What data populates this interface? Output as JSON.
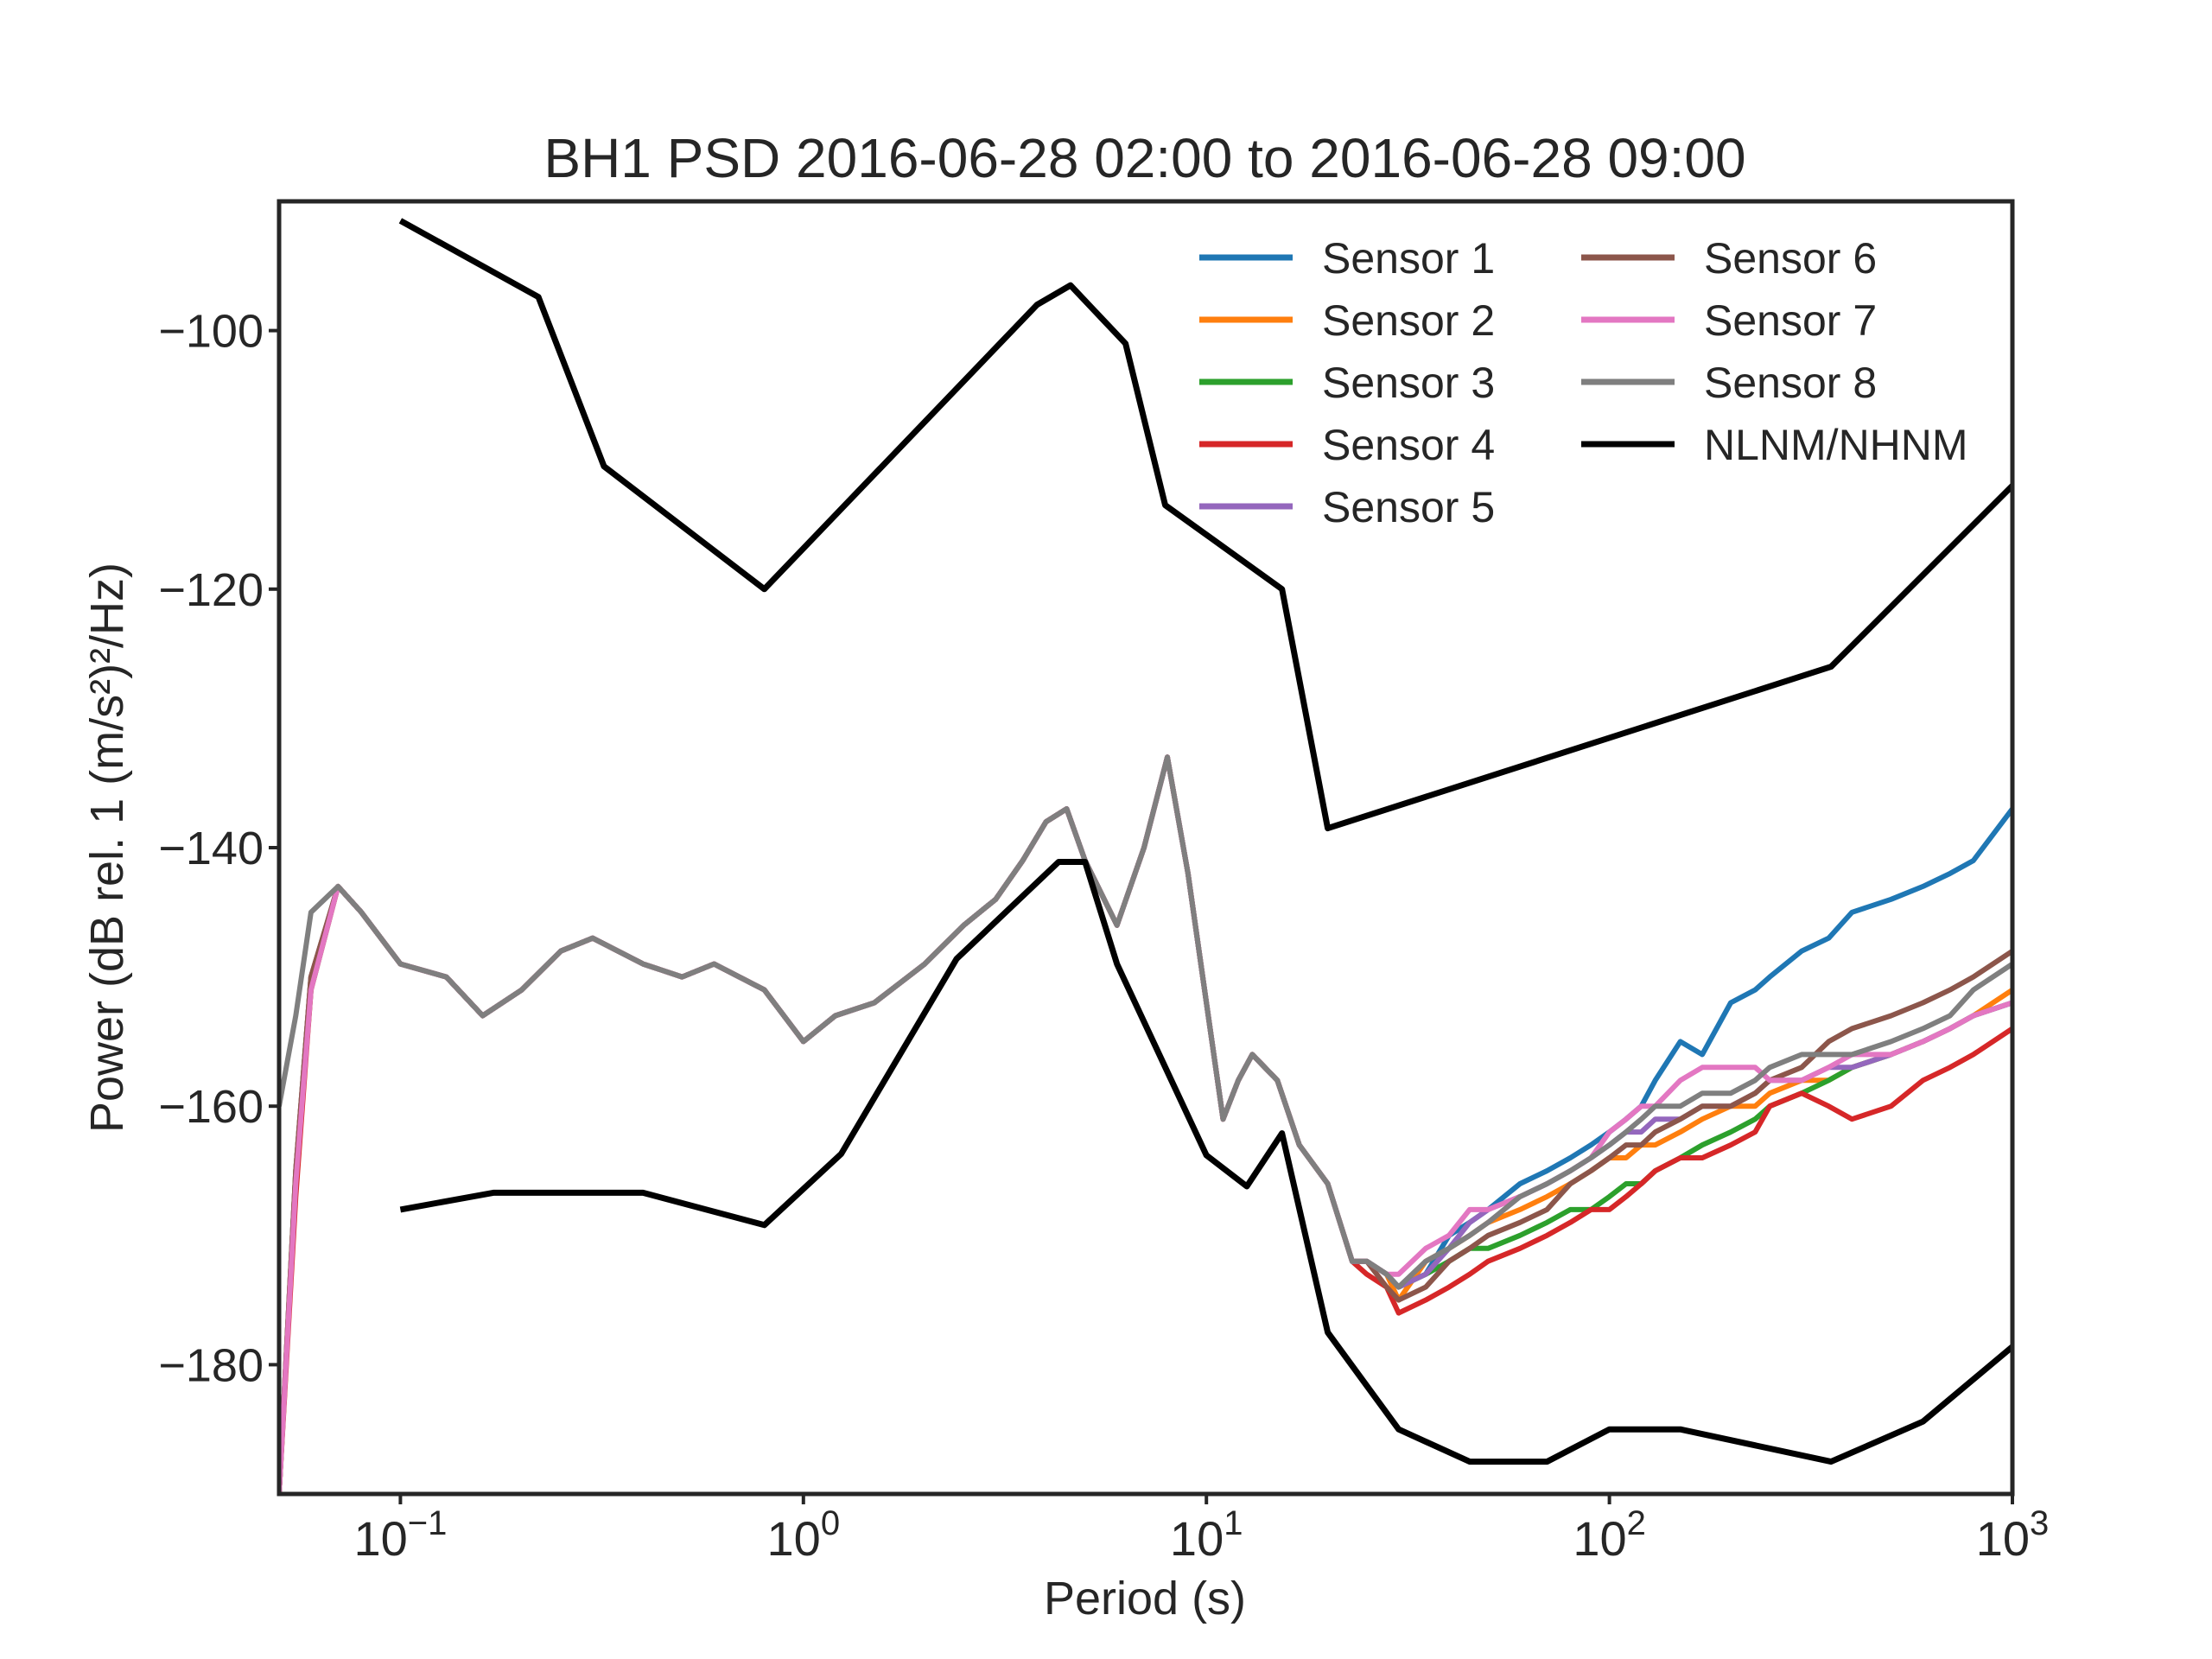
{
  "chart_data": {
    "type": "line",
    "title": "BH1 PSD 2016-06-28 02:00 to 2016-06-28 09:00",
    "xlabel": "Period (s)",
    "ylabel": "Power (dB rel. 1 (m/s²)²/Hz)",
    "xscale": "log",
    "xlim": [
      0.05,
      1000
    ],
    "ylim": [
      -190,
      -90
    ],
    "grid": false,
    "legend_position": "top-right",
    "x_ticks": [
      {
        "value": 0.1,
        "base": "10",
        "exp": "−1"
      },
      {
        "value": 1,
        "base": "10",
        "exp": "0"
      },
      {
        "value": 10,
        "base": "10",
        "exp": "1"
      },
      {
        "value": 100,
        "base": "10",
        "exp": "2"
      },
      {
        "value": 1000,
        "base": "10",
        "exp": "3"
      }
    ],
    "y_ticks": [
      {
        "value": -100,
        "label": "−100"
      },
      {
        "value": -120,
        "label": "−120"
      },
      {
        "value": -140,
        "label": "−140"
      },
      {
        "value": -160,
        "label": "−160"
      },
      {
        "value": -180,
        "label": "−180"
      }
    ],
    "series": [
      {
        "name": "Sensor 1",
        "color": "#1f77b4",
        "x": [
          0.05,
          0.055,
          0.06,
          0.07,
          0.08,
          0.1,
          0.13,
          0.16,
          0.2,
          0.25,
          0.3,
          0.4,
          0.5,
          0.6,
          0.8,
          1.0,
          1.2,
          1.5,
          2.0,
          2.5,
          3.0,
          3.5,
          4.0,
          4.5,
          5.0,
          6.0,
          7.0,
          8.0,
          9.0,
          10,
          11,
          12,
          13,
          15,
          17,
          20,
          23,
          25,
          28,
          30,
          35,
          40,
          45,
          50,
          60,
          70,
          80,
          90,
          100,
          110,
          120,
          130,
          150,
          170,
          200,
          230,
          250,
          300,
          350,
          400,
          500,
          600,
          700,
          800,
          1000
        ],
        "y": [
          -190,
          -165,
          -150,
          -143,
          -145,
          -149,
          -150,
          -153,
          -151,
          -148,
          -147,
          -149,
          -150,
          -149,
          -151,
          -155,
          -153,
          -152,
          -149,
          -146,
          -144,
          -141,
          -138,
          -137,
          -141,
          -146,
          -140,
          -133,
          -142,
          -152,
          -161,
          -158,
          -156,
          -158,
          -163,
          -166,
          -172,
          -172,
          -173,
          -174,
          -173,
          -170,
          -169,
          -168,
          -166,
          -165,
          -164,
          -163,
          -162,
          -161,
          -160,
          -158,
          -155,
          -156,
          -152,
          -151,
          -150,
          -148,
          -147,
          -145,
          -144,
          -143,
          -142,
          -141,
          -137
        ]
      },
      {
        "name": "Sensor 2",
        "color": "#ff7f0e",
        "x": [
          0.05,
          0.055,
          0.06,
          0.07,
          0.08,
          0.1,
          0.13,
          0.16,
          0.2,
          0.25,
          0.3,
          0.4,
          0.5,
          0.6,
          0.8,
          1.0,
          1.2,
          1.5,
          2.0,
          2.5,
          3.0,
          3.5,
          4.0,
          4.5,
          5.0,
          6.0,
          7.0,
          8.0,
          9.0,
          10,
          11,
          12,
          13,
          15,
          17,
          20,
          23,
          25,
          28,
          30,
          35,
          40,
          45,
          50,
          60,
          70,
          80,
          90,
          100,
          110,
          120,
          130,
          150,
          170,
          200,
          230,
          250,
          300,
          350,
          400,
          500,
          600,
          700,
          800,
          1000
        ],
        "y": [
          -190,
          -165,
          -150,
          -143,
          -145,
          -149,
          -150,
          -153,
          -151,
          -148,
          -147,
          -149,
          -150,
          -149,
          -151,
          -155,
          -153,
          -152,
          -149,
          -146,
          -144,
          -141,
          -138,
          -137,
          -141,
          -146,
          -140,
          -133,
          -142,
          -152,
          -161,
          -158,
          -156,
          -158,
          -163,
          -166,
          -172,
          -172,
          -173,
          -175,
          -172,
          -171,
          -170,
          -169,
          -168,
          -167,
          -166,
          -165,
          -164,
          -164,
          -163,
          -163,
          -162,
          -161,
          -160,
          -160,
          -159,
          -158,
          -158,
          -157,
          -156,
          -155,
          -154,
          -153,
          -151
        ]
      },
      {
        "name": "Sensor 3",
        "color": "#2ca02c",
        "x": [
          0.05,
          0.055,
          0.06,
          0.07,
          0.08,
          0.1,
          0.13,
          0.16,
          0.2,
          0.25,
          0.3,
          0.4,
          0.5,
          0.6,
          0.8,
          1.0,
          1.2,
          1.5,
          2.0,
          2.5,
          3.0,
          3.5,
          4.0,
          4.5,
          5.0,
          6.0,
          7.0,
          8.0,
          9.0,
          10,
          11,
          12,
          13,
          15,
          17,
          20,
          23,
          25,
          28,
          30,
          35,
          40,
          45,
          50,
          60,
          70,
          80,
          90,
          100,
          110,
          120,
          130,
          150,
          170,
          200,
          230,
          250,
          300,
          350,
          400,
          500,
          600,
          700,
          800,
          1000
        ],
        "y": [
          -190,
          -166,
          -151,
          -143,
          -145,
          -149,
          -150,
          -153,
          -151,
          -148,
          -147,
          -149,
          -150,
          -149,
          -151,
          -155,
          -153,
          -152,
          -149,
          -146,
          -144,
          -141,
          -138,
          -137,
          -141,
          -146,
          -140,
          -133,
          -142,
          -152,
          -161,
          -158,
          -156,
          -158,
          -163,
          -166,
          -172,
          -172,
          -173,
          -174,
          -173,
          -172,
          -171,
          -171,
          -170,
          -169,
          -168,
          -168,
          -167,
          -166,
          -166,
          -165,
          -164,
          -163,
          -162,
          -161,
          -160,
          -159,
          -158,
          -157,
          -156,
          -155,
          -154,
          -153,
          -152
        ]
      },
      {
        "name": "Sensor 4",
        "color": "#d62728",
        "x": [
          0.05,
          0.055,
          0.06,
          0.07,
          0.08,
          0.1,
          0.13,
          0.16,
          0.2,
          0.25,
          0.3,
          0.4,
          0.5,
          0.6,
          0.8,
          1.0,
          1.2,
          1.5,
          2.0,
          2.5,
          3.0,
          3.5,
          4.0,
          4.5,
          5.0,
          6.0,
          7.0,
          8.0,
          9.0,
          10,
          11,
          12,
          13,
          15,
          17,
          20,
          23,
          25,
          28,
          30,
          35,
          40,
          45,
          50,
          60,
          70,
          80,
          90,
          100,
          110,
          120,
          130,
          150,
          170,
          200,
          230,
          250,
          300,
          350,
          400,
          500,
          600,
          700,
          800,
          1000
        ],
        "y": [
          -190,
          -167,
          -151,
          -143,
          -145,
          -149,
          -150,
          -153,
          -151,
          -148,
          -147,
          -149,
          -150,
          -149,
          -151,
          -155,
          -153,
          -152,
          -149,
          -146,
          -144,
          -141,
          -138,
          -137,
          -141,
          -146,
          -140,
          -133,
          -142,
          -152,
          -161,
          -158,
          -156,
          -158,
          -163,
          -166,
          -172,
          -173,
          -174,
          -176,
          -175,
          -174,
          -173,
          -172,
          -171,
          -170,
          -169,
          -168,
          -168,
          -167,
          -166,
          -165,
          -164,
          -164,
          -163,
          -162,
          -160,
          -159,
          -160,
          -161,
          -160,
          -158,
          -157,
          -156,
          -154
        ]
      },
      {
        "name": "Sensor 5",
        "color": "#9467bd",
        "x": [
          0.05,
          0.055,
          0.06,
          0.07,
          0.08,
          0.1,
          0.13,
          0.16,
          0.2,
          0.25,
          0.3,
          0.4,
          0.5,
          0.6,
          0.8,
          1.0,
          1.2,
          1.5,
          2.0,
          2.5,
          3.0,
          3.5,
          4.0,
          4.5,
          5.0,
          6.0,
          7.0,
          8.0,
          9.0,
          10,
          11,
          12,
          13,
          15,
          17,
          20,
          23,
          25,
          28,
          30,
          35,
          40,
          45,
          50,
          60,
          70,
          80,
          90,
          100,
          110,
          120,
          130,
          150,
          170,
          200,
          230,
          250,
          300,
          350,
          400,
          500,
          600,
          700,
          800,
          1000
        ],
        "y": [
          -190,
          -165,
          -150,
          -143,
          -145,
          -149,
          -150,
          -153,
          -151,
          -148,
          -147,
          -149,
          -150,
          -149,
          -151,
          -155,
          -153,
          -152,
          -149,
          -146,
          -144,
          -141,
          -138,
          -137,
          -141,
          -146,
          -140,
          -133,
          -142,
          -152,
          -161,
          -158,
          -156,
          -158,
          -163,
          -166,
          -172,
          -172,
          -173,
          -174,
          -173,
          -171,
          -169,
          -168,
          -167,
          -166,
          -165,
          -164,
          -163,
          -162,
          -162,
          -161,
          -161,
          -160,
          -160,
          -159,
          -158,
          -158,
          -157,
          -157,
          -156,
          -155,
          -154,
          -153,
          -152
        ]
      },
      {
        "name": "Sensor 6",
        "color": "#8c564b",
        "x": [
          0.05,
          0.055,
          0.06,
          0.07,
          0.08,
          0.1,
          0.13,
          0.16,
          0.2,
          0.25,
          0.3,
          0.4,
          0.5,
          0.6,
          0.8,
          1.0,
          1.2,
          1.5,
          2.0,
          2.5,
          3.0,
          3.5,
          4.0,
          4.5,
          5.0,
          6.0,
          7.0,
          8.0,
          9.0,
          10,
          11,
          12,
          13,
          15,
          17,
          20,
          23,
          25,
          28,
          30,
          35,
          40,
          45,
          50,
          60,
          70,
          80,
          90,
          100,
          110,
          120,
          130,
          150,
          170,
          200,
          230,
          250,
          300,
          350,
          400,
          500,
          600,
          700,
          800,
          1000
        ],
        "y": [
          -190,
          -165,
          -150,
          -143,
          -145,
          -149,
          -150,
          -153,
          -151,
          -148,
          -147,
          -149,
          -150,
          -149,
          -151,
          -155,
          -153,
          -152,
          -149,
          -146,
          -144,
          -141,
          -138,
          -137,
          -141,
          -146,
          -140,
          -133,
          -142,
          -152,
          -161,
          -158,
          -156,
          -158,
          -163,
          -166,
          -172,
          -172,
          -174,
          -175,
          -174,
          -172,
          -171,
          -170,
          -169,
          -168,
          -166,
          -165,
          -164,
          -163,
          -163,
          -162,
          -161,
          -160,
          -160,
          -159,
          -158,
          -157,
          -155,
          -154,
          -153,
          -152,
          -151,
          -150,
          -148
        ]
      },
      {
        "name": "Sensor 7",
        "color": "#e377c2",
        "x": [
          0.05,
          0.055,
          0.06,
          0.07,
          0.08,
          0.1,
          0.13,
          0.16,
          0.2,
          0.25,
          0.3,
          0.4,
          0.5,
          0.6,
          0.8,
          1.0,
          1.2,
          1.5,
          2.0,
          2.5,
          3.0,
          3.5,
          4.0,
          4.5,
          5.0,
          6.0,
          7.0,
          8.0,
          9.0,
          10,
          11,
          12,
          13,
          15,
          17,
          20,
          23,
          25,
          28,
          30,
          35,
          40,
          45,
          50,
          60,
          70,
          80,
          90,
          100,
          110,
          120,
          130,
          150,
          170,
          200,
          230,
          250,
          300,
          350,
          400,
          500,
          600,
          700,
          800,
          1000
        ],
        "y": [
          -190,
          -166,
          -151,
          -143,
          -145,
          -149,
          -150,
          -153,
          -151,
          -148,
          -147,
          -149,
          -150,
          -149,
          -151,
          -155,
          -153,
          -152,
          -149,
          -146,
          -144,
          -141,
          -138,
          -137,
          -141,
          -146,
          -140,
          -133,
          -142,
          -152,
          -161,
          -158,
          -156,
          -158,
          -163,
          -166,
          -172,
          -172,
          -173,
          -173,
          -171,
          -170,
          -168,
          -168,
          -167,
          -166,
          -165,
          -164,
          -162,
          -161,
          -160,
          -160,
          -158,
          -157,
          -157,
          -157,
          -158,
          -158,
          -157,
          -156,
          -156,
          -155,
          -154,
          -153,
          -152
        ]
      },
      {
        "name": "Sensor 8",
        "color": "#7f7f7f",
        "x": [
          0.05,
          0.055,
          0.06,
          0.07,
          0.08,
          0.1,
          0.13,
          0.16,
          0.2,
          0.25,
          0.3,
          0.4,
          0.5,
          0.6,
          0.8,
          1.0,
          1.2,
          1.5,
          2.0,
          2.5,
          3.0,
          3.5,
          4.0,
          4.5,
          5.0,
          6.0,
          7.0,
          8.0,
          9.0,
          10,
          11,
          12,
          13,
          15,
          17,
          20,
          23,
          25,
          28,
          30,
          35,
          40,
          45,
          50,
          60,
          70,
          80,
          90,
          100,
          110,
          120,
          130,
          150,
          170,
          200,
          230,
          250,
          300,
          350,
          400,
          500,
          600,
          700,
          800,
          1000
        ],
        "y": [
          -160,
          -153,
          -145,
          -143,
          -145,
          -149,
          -150,
          -153,
          -151,
          -148,
          -147,
          -149,
          -150,
          -149,
          -151,
          -155,
          -153,
          -152,
          -149,
          -146,
          -144,
          -141,
          -138,
          -137,
          -141,
          -146,
          -140,
          -133,
          -142,
          -152,
          -161,
          -158,
          -156,
          -158,
          -163,
          -166,
          -172,
          -172,
          -173,
          -174,
          -172,
          -171,
          -170,
          -169,
          -167,
          -166,
          -165,
          -164,
          -163,
          -162,
          -161,
          -160,
          -160,
          -159,
          -159,
          -158,
          -157,
          -156,
          -156,
          -156,
          -155,
          -154,
          -153,
          -151,
          -149
        ]
      },
      {
        "name": "NLNM/NHNM",
        "color": "#000000",
        "x": [
          0.1,
          0.22,
          0.32,
          0.8,
          3.8,
          4.6,
          6.3,
          7.9,
          15.4,
          20,
          354.8,
          1000
        ],
        "y": [
          -91.5,
          -97.4,
          -110.5,
          -120,
          -98,
          -96.5,
          -101,
          -113.5,
          -120,
          -138.5,
          -126,
          -112
        ]
      },
      {
        "name": "",
        "color": "#000000",
        "x": [
          0.1,
          0.17,
          0.4,
          0.8,
          1.24,
          2.4,
          4.3,
          5.0,
          6.0,
          10,
          12.6,
          15.4,
          20,
          30,
          45,
          70,
          100,
          150,
          354.8,
          600,
          1000
        ],
        "y": [
          -168,
          -166.7,
          -166.7,
          -169.2,
          -163.7,
          -148.6,
          -141.1,
          -141.1,
          -149,
          -163.8,
          -166.2,
          -162.1,
          -177.5,
          -185,
          -187.5,
          -187.5,
          -185,
          -185,
          -187.5,
          -184.4,
          -178.6
        ]
      }
    ]
  }
}
